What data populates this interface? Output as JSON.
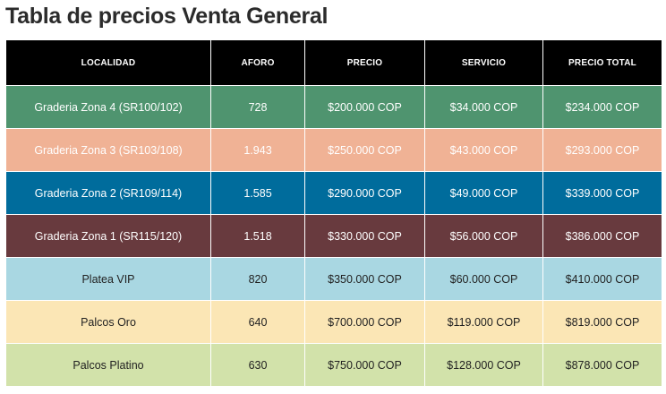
{
  "title": "Tabla de precios Venta General",
  "headers": [
    "LOCALIDAD",
    "AFORO",
    "PRECIO",
    "SERVICIO",
    "PRECIO TOTAL"
  ],
  "rows": [
    {
      "localidad": "Graderia Zona 4 (SR100/102)",
      "aforo": "728",
      "precio": "$200.000 COP",
      "servicio": "$34.000 COP",
      "total": "$234.000 COP",
      "bg": "#4f946f",
      "fg": "#ffffff"
    },
    {
      "localidad": "Graderia Zona 3 (SR103/108)",
      "aforo": "1.943",
      "precio": "$250.000 COP",
      "servicio": "$43.000 COP",
      "total": "$293.000 COP",
      "bg": "#f0b295",
      "fg": "#ffffff"
    },
    {
      "localidad": "Graderia Zona 2 (SR109/114)",
      "aforo": "1.585",
      "precio": "$290.000 COP",
      "servicio": "$49.000 COP",
      "total": "$339.000 COP",
      "bg": "#006c9c",
      "fg": "#ffffff"
    },
    {
      "localidad": "Graderia Zona 1 (SR115/120)",
      "aforo": "1.518",
      "precio": "$330.000 COP",
      "servicio": "$56.000 COP",
      "total": "$386.000 COP",
      "bg": "#683a3e",
      "fg": "#ffffff"
    },
    {
      "localidad": "Platea VIP",
      "aforo": "820",
      "precio": "$350.000 COP",
      "servicio": "$60.000 COP",
      "total": "$410.000 COP",
      "bg": "#a9d7e2",
      "fg": "#222222"
    },
    {
      "localidad": "Palcos Oro",
      "aforo": "640",
      "precio": "$700.000 COP",
      "servicio": "$119.000 COP",
      "total": "$819.000 COP",
      "bg": "#fbe6b5",
      "fg": "#222222"
    },
    {
      "localidad": "Palcos Platino",
      "aforo": "630",
      "precio": "$750.000 COP",
      "servicio": "$128.000 COP",
      "total": "$878.000 COP",
      "bg": "#d2e2aa",
      "fg": "#222222"
    }
  ]
}
